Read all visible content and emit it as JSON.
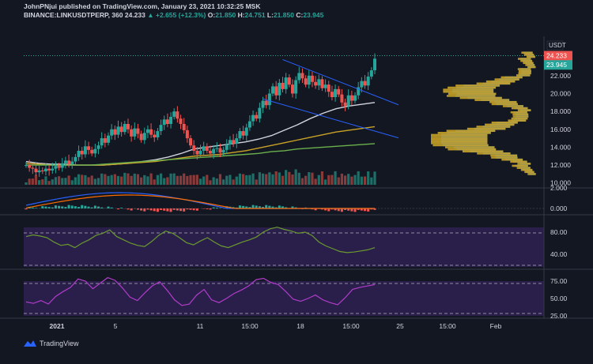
{
  "header": {
    "publisher_line": "JohnPNjui published on TradingView.com, January 23, 2021 10:32:25 MSK",
    "symbol": "BINANCE:LINKUSDTPERP, 360",
    "last": "24.233",
    "arrow": "▲",
    "change": "+2.655 (+12.3%)",
    "o_label": "O:",
    "o_val": "21.850",
    "h_label": "H:",
    "h_val": "24.751",
    "l_label": "L:",
    "l_val": "21.850",
    "c_label": "C:",
    "c_val": "23.945"
  },
  "footer": {
    "brand": "TradingView"
  },
  "colors": {
    "up": "#26a69a",
    "down": "#ef5350",
    "rsi": "#6a9a2f",
    "stoch": "#b03cc9",
    "panel": "#2a1f4a"
  },
  "chart_data": {
    "type": "candlestick",
    "currency": "USDT",
    "price_scale": {
      "ticks": [
        24.0,
        22.0,
        20.0,
        18.0,
        16.0,
        14.0,
        12.0,
        10.0
      ],
      "labels": [
        "24.000",
        "22.000",
        "20.000",
        "18.000",
        "16.000",
        "14.000",
        "12.000",
        "10.000"
      ],
      "range": [
        9.8,
        26.4
      ]
    },
    "price_tags": {
      "last": "24.233",
      "close": "23.945"
    },
    "time_axis": [
      "2021",
      "5",
      "11",
      "15:00",
      "18",
      "15:00",
      "25",
      "15:00",
      "Feb"
    ],
    "closes": [
      12.0,
      11.7,
      11.6,
      11.2,
      11.4,
      11.3,
      11.6,
      11.4,
      11.6,
      11.9,
      11.7,
      12.2,
      12.5,
      12.1,
      12.4,
      12.9,
      13.6,
      13.2,
      14.1,
      13.7,
      13.3,
      13.8,
      14.2,
      15.0,
      14.5,
      15.3,
      16.0,
      15.4,
      16.3,
      15.7,
      16.6,
      16.0,
      15.2,
      16.1,
      15.5,
      14.8,
      15.6,
      16.0,
      15.4,
      15.1,
      15.8,
      16.5,
      17.1,
      16.6,
      17.4,
      18.0,
      17.2,
      16.6,
      15.9,
      15.0,
      14.2,
      13.6,
      13.2,
      13.6,
      14.1,
      13.6,
      13.3,
      13.8,
      13.9,
      13.4,
      13.7,
      14.3,
      14.8,
      14.4,
      15.0,
      15.8,
      15.3,
      16.2,
      16.9,
      17.6,
      17.2,
      18.4,
      19.2,
      18.7,
      20.0,
      20.8,
      19.8,
      21.2,
      20.5,
      21.8,
      21.0,
      20.0,
      21.5,
      22.3,
      21.7,
      21.0,
      22.0,
      21.3,
      20.9,
      21.6,
      20.6,
      21.0,
      20.2,
      19.6,
      20.5,
      19.9,
      19.0,
      18.6,
      19.8,
      19.2,
      19.8,
      20.7,
      21.4,
      20.9,
      21.9,
      22.6,
      23.9
    ],
    "ma_series": [
      {
        "color": "#d1d4dc",
        "values": [
          12.4,
          12.2,
          12.1,
          12.1,
          12.0,
          12.0,
          12.0,
          12.1,
          12.2,
          12.4,
          12.6,
          12.9,
          13.3,
          13.8,
          14.0,
          14.2,
          14.4,
          14.6,
          14.9,
          15.3,
          15.9,
          16.5,
          17.2,
          17.8,
          18.3,
          18.6,
          18.8,
          19.0
        ]
      },
      {
        "color": "#c9a227",
        "values": [
          12.2,
          12.1,
          12.0,
          12.0,
          12.0,
          12.0,
          12.0,
          12.1,
          12.2,
          12.3,
          12.4,
          12.6,
          12.8,
          13.0,
          13.1,
          13.2,
          13.4,
          13.6,
          13.9,
          14.2,
          14.5,
          14.8,
          15.1,
          15.4,
          15.7,
          15.9,
          16.1,
          16.3
        ]
      },
      {
        "color": "#6ab04c",
        "values": [
          12.0,
          12.0,
          12.0,
          12.0,
          12.0,
          12.0,
          12.1,
          12.2,
          12.3,
          12.4,
          12.5,
          12.6,
          12.7,
          12.8,
          12.9,
          13.0,
          13.1,
          13.2,
          13.3,
          13.5,
          13.6,
          13.8,
          13.9,
          14.0,
          14.1,
          14.2,
          14.3,
          14.4
        ]
      }
    ],
    "trendlines": [
      {
        "from": [
          78,
          23.8
        ],
        "to": [
          106,
          19.8
        ]
      },
      {
        "from": [
          72,
          19.4
        ],
        "to": [
          106,
          16.1
        ]
      }
    ],
    "volume_profile_note": "price-by-volume histogram on right side",
    "macd": {
      "scale_labels": [
        "2.000",
        "0.000"
      ]
    },
    "rsi": {
      "scale_labels": [
        "80.00",
        "40.00"
      ],
      "values": [
        72,
        75,
        73,
        70,
        62,
        56,
        58,
        52,
        60,
        66,
        74,
        78,
        84,
        72,
        66,
        60,
        56,
        54,
        63,
        74,
        82,
        78,
        70,
        61,
        57,
        64,
        70,
        62,
        55,
        52,
        57,
        62,
        66,
        71,
        80,
        86,
        89,
        85,
        82,
        78,
        80,
        74,
        62,
        55,
        50,
        45,
        43,
        44,
        46,
        48,
        52
      ]
    },
    "stoch": {
      "scale_labels": [
        "75.00",
        "50.00",
        "25.00"
      ],
      "values": [
        45,
        43,
        47,
        42,
        53,
        60,
        66,
        78,
        75,
        64,
        72,
        80,
        76,
        65,
        52,
        47,
        58,
        68,
        74,
        62,
        48,
        40,
        42,
        55,
        63,
        48,
        44,
        50,
        57,
        62,
        68,
        77,
        79,
        73,
        70,
        60,
        49,
        46,
        50,
        55,
        48,
        44,
        41,
        51,
        63,
        66,
        68,
        70
      ]
    }
  }
}
